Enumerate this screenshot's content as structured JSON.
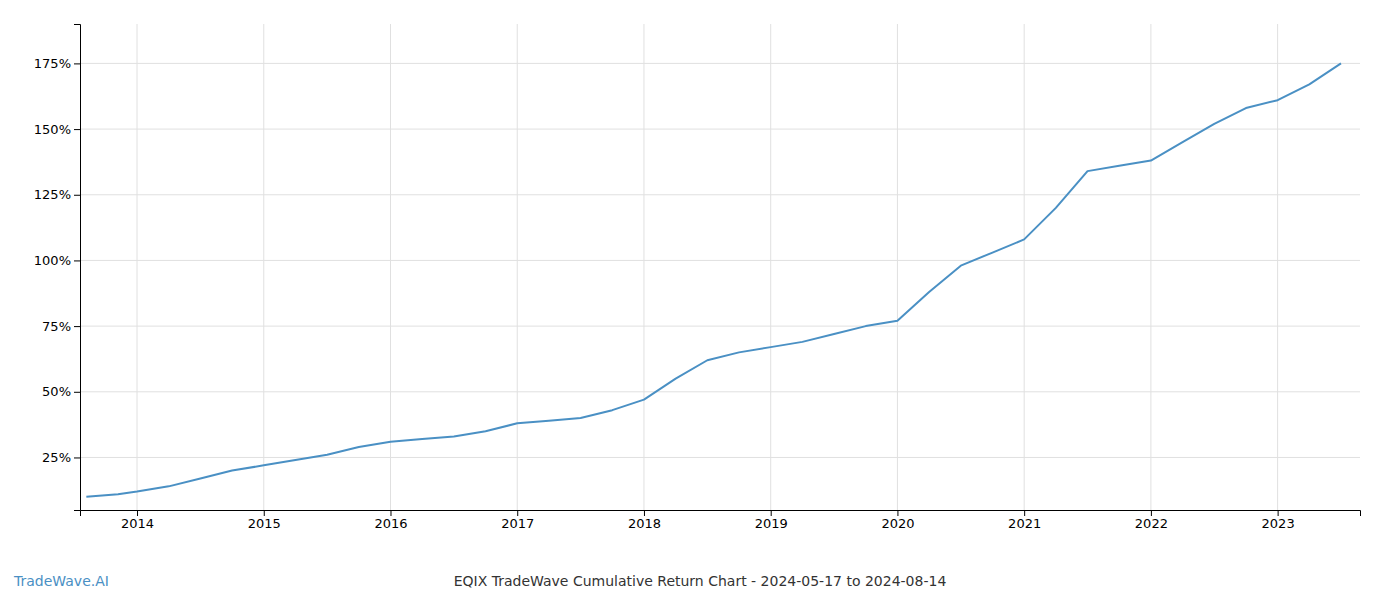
{
  "chart_data": {
    "type": "line",
    "title": "EQIX TradeWave Cumulative Return Chart - 2024-05-17 to 2024-08-14",
    "annotations": [
      "TradeWave.AI"
    ],
    "color": "#4a90c4",
    "x": [
      2013.6,
      2013.85,
      2014.0,
      2014.25,
      2014.5,
      2014.75,
      2015.0,
      2015.25,
      2015.5,
      2015.75,
      2016.0,
      2016.25,
      2016.5,
      2016.75,
      2017.0,
      2017.25,
      2017.5,
      2017.75,
      2018.0,
      2018.25,
      2018.5,
      2018.75,
      2019.0,
      2019.25,
      2019.5,
      2019.75,
      2020.0,
      2020.25,
      2020.5,
      2020.75,
      2021.0,
      2021.25,
      2021.5,
      2021.75,
      2022.0,
      2022.25,
      2022.5,
      2022.75,
      2023.0,
      2023.25,
      2023.5
    ],
    "values": [
      10,
      11,
      12,
      14,
      17,
      20,
      22,
      24,
      26,
      29,
      31,
      32,
      33,
      35,
      38,
      39,
      40,
      43,
      47,
      55,
      62,
      65,
      67,
      69,
      72,
      75,
      77,
      88,
      98,
      103,
      108,
      120,
      134,
      136,
      138,
      145,
      152,
      158,
      161,
      167,
      175
    ],
    "xlim": [
      2013.55,
      2023.65
    ],
    "xticks": [
      2014,
      2015,
      2016,
      2017,
      2018,
      2019,
      2020,
      2021,
      2022,
      2023
    ],
    "ylim": [
      5,
      190
    ],
    "yticks": [
      {
        "value": 25,
        "label": "25%"
      },
      {
        "value": 50,
        "label": "50%"
      },
      {
        "value": 75,
        "label": "75%"
      },
      {
        "value": 100,
        "label": "100%"
      },
      {
        "value": 125,
        "label": "125%"
      },
      {
        "value": 150,
        "label": "150%"
      },
      {
        "value": 175,
        "label": "175%"
      }
    ],
    "grid": true
  }
}
